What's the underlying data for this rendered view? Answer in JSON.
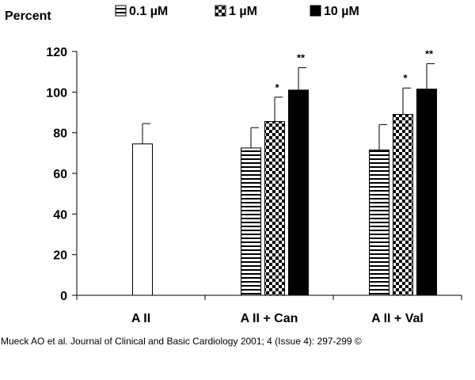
{
  "chart_data": {
    "type": "bar",
    "ylabel": "Percent",
    "ylim": [
      0,
      120
    ],
    "yticks": [
      0,
      20,
      40,
      60,
      80,
      100,
      120
    ],
    "categories": [
      "A II",
      "A II + Can",
      "A II + Val"
    ],
    "control": {
      "name": "A II",
      "category": "A II",
      "value": 74.5,
      "error": 10
    },
    "series": [
      {
        "name": "0.1 µM",
        "pattern": "horizontal-stripes",
        "values": [
          null,
          72.5,
          71.5
        ],
        "errors": [
          null,
          10,
          12.5
        ],
        "significance": [
          null,
          "",
          ""
        ]
      },
      {
        "name": "1 µM",
        "pattern": "checkerboard",
        "values": [
          null,
          85.5,
          89
        ],
        "errors": [
          null,
          12,
          13
        ],
        "significance": [
          null,
          "*",
          "*"
        ]
      },
      {
        "name": "10 µM",
        "pattern": "solid",
        "values": [
          null,
          101,
          101.5
        ],
        "errors": [
          null,
          11,
          12.5
        ],
        "significance": [
          null,
          "**",
          "**"
        ]
      }
    ]
  },
  "citation": "Mueck AO et al. Journal of Clinical and Basic Cardiology 2001; 4 (Issue 4): 297-299 ©"
}
